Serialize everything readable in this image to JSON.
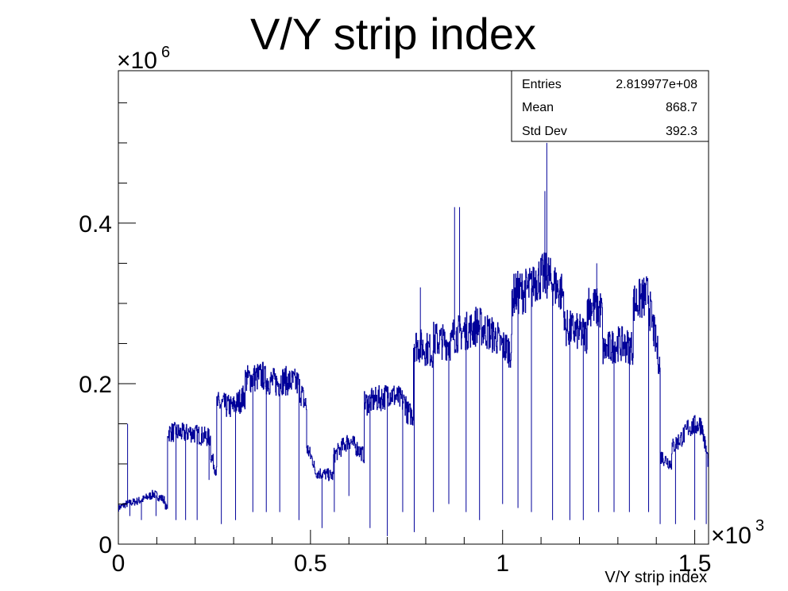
{
  "chart_data": {
    "type": "histogram",
    "title": "V/Y strip index",
    "xlabel": "V/Y strip index",
    "ylabel": "",
    "x_multiplier": "×10",
    "x_multiplier_exp": "3",
    "y_multiplier": "×10",
    "y_multiplier_exp": "6",
    "xlim": [
      0,
      1536
    ],
    "ylim": [
      0,
      590000
    ],
    "x_ticks": [
      {
        "value": 0,
        "label": "0"
      },
      {
        "value": 500,
        "label": "0.5"
      },
      {
        "value": 1000,
        "label": "1"
      },
      {
        "value": 1500,
        "label": "1.5"
      }
    ],
    "y_ticks": [
      {
        "value": 0,
        "label": "0"
      },
      {
        "value": 200000,
        "label": "0.2"
      },
      {
        "value": 400000,
        "label": "0.4"
      }
    ],
    "line_color": "#000099",
    "segments": [
      {
        "x0": 0,
        "x1": 20,
        "y0": 45000,
        "y1": 50000
      },
      {
        "x0": 20,
        "x1": 60,
        "y0": 50000,
        "y1": 55000
      },
      {
        "x0": 60,
        "x1": 90,
        "y0": 55000,
        "y1": 62000
      },
      {
        "x0": 90,
        "x1": 120,
        "y0": 63000,
        "y1": 55000
      },
      {
        "x0": 120,
        "x1": 128,
        "y0": 50000,
        "y1": 42000
      },
      {
        "x0": 128,
        "x1": 180,
        "y0": 140000,
        "y1": 138000
      },
      {
        "x0": 180,
        "x1": 240,
        "y0": 140000,
        "y1": 132000
      },
      {
        "x0": 240,
        "x1": 256,
        "y0": 112000,
        "y1": 88000
      },
      {
        "x0": 256,
        "x1": 300,
        "y0": 175000,
        "y1": 170000
      },
      {
        "x0": 300,
        "x1": 330,
        "y0": 172000,
        "y1": 185000
      },
      {
        "x0": 330,
        "x1": 380,
        "y0": 205000,
        "y1": 210000
      },
      {
        "x0": 380,
        "x1": 420,
        "y0": 205000,
        "y1": 200000
      },
      {
        "x0": 420,
        "x1": 470,
        "y0": 205000,
        "y1": 200000
      },
      {
        "x0": 470,
        "x1": 490,
        "y0": 195000,
        "y1": 170000
      },
      {
        "x0": 490,
        "x1": 510,
        "y0": 120000,
        "y1": 100000
      },
      {
        "x0": 510,
        "x1": 560,
        "y0": 90000,
        "y1": 85000
      },
      {
        "x0": 560,
        "x1": 600,
        "y0": 110000,
        "y1": 130000
      },
      {
        "x0": 600,
        "x1": 640,
        "y0": 130000,
        "y1": 110000
      },
      {
        "x0": 640,
        "x1": 700,
        "y0": 175000,
        "y1": 185000
      },
      {
        "x0": 700,
        "x1": 750,
        "y0": 190000,
        "y1": 175000
      },
      {
        "x0": 750,
        "x1": 768,
        "y0": 165000,
        "y1": 160000
      },
      {
        "x0": 768,
        "x1": 820,
        "y0": 250000,
        "y1": 240000
      },
      {
        "x0": 820,
        "x1": 870,
        "y0": 255000,
        "y1": 250000
      },
      {
        "x0": 870,
        "x1": 930,
        "y0": 260000,
        "y1": 270000
      },
      {
        "x0": 930,
        "x1": 990,
        "y0": 275000,
        "y1": 255000
      },
      {
        "x0": 990,
        "x1": 1024,
        "y0": 250000,
        "y1": 240000
      },
      {
        "x0": 1024,
        "x1": 1080,
        "y0": 310000,
        "y1": 320000
      },
      {
        "x0": 1080,
        "x1": 1120,
        "y0": 330000,
        "y1": 335000
      },
      {
        "x0": 1120,
        "x1": 1160,
        "y0": 330000,
        "y1": 310000
      },
      {
        "x0": 1160,
        "x1": 1220,
        "y0": 270000,
        "y1": 260000
      },
      {
        "x0": 1220,
        "x1": 1260,
        "y0": 300000,
        "y1": 290000
      },
      {
        "x0": 1260,
        "x1": 1300,
        "y0": 240000,
        "y1": 250000
      },
      {
        "x0": 1300,
        "x1": 1340,
        "y0": 250000,
        "y1": 245000
      },
      {
        "x0": 1340,
        "x1": 1380,
        "y0": 300000,
        "y1": 310000
      },
      {
        "x0": 1380,
        "x1": 1410,
        "y0": 300000,
        "y1": 220000
      },
      {
        "x0": 1410,
        "x1": 1440,
        "y0": 110000,
        "y1": 100000
      },
      {
        "x0": 1440,
        "x1": 1480,
        "y0": 120000,
        "y1": 140000
      },
      {
        "x0": 1480,
        "x1": 1520,
        "y0": 145000,
        "y1": 150000
      },
      {
        "x0": 1520,
        "x1": 1536,
        "y0": 140000,
        "y1": 100000
      }
    ],
    "spikes": [
      {
        "x": 24,
        "y": 150000
      },
      {
        "x": 888,
        "y": 420000
      },
      {
        "x": 875,
        "y": 420000
      },
      {
        "x": 1110,
        "y": 440000
      },
      {
        "x": 1115,
        "y": 500000
      },
      {
        "x": 786,
        "y": 320000
      },
      {
        "x": 1245,
        "y": 350000
      },
      {
        "x": 1360,
        "y": 325000
      }
    ],
    "dips": [
      {
        "x": 30,
        "y": 35000
      },
      {
        "x": 60,
        "y": 30000
      },
      {
        "x": 98,
        "y": 35000
      },
      {
        "x": 150,
        "y": 30000
      },
      {
        "x": 175,
        "y": 30000
      },
      {
        "x": 205,
        "y": 30000
      },
      {
        "x": 236,
        "y": 80000
      },
      {
        "x": 268,
        "y": 25000
      },
      {
        "x": 305,
        "y": 30000
      },
      {
        "x": 350,
        "y": 40000
      },
      {
        "x": 385,
        "y": 40000
      },
      {
        "x": 420,
        "y": 40000
      },
      {
        "x": 470,
        "y": 30000
      },
      {
        "x": 530,
        "y": 20000
      },
      {
        "x": 562,
        "y": 40000
      },
      {
        "x": 600,
        "y": 60000
      },
      {
        "x": 655,
        "y": 20000
      },
      {
        "x": 700,
        "y": 10000
      },
      {
        "x": 740,
        "y": 40000
      },
      {
        "x": 770,
        "y": 15000
      },
      {
        "x": 820,
        "y": 40000
      },
      {
        "x": 860,
        "y": 50000
      },
      {
        "x": 905,
        "y": 40000
      },
      {
        "x": 940,
        "y": 30000
      },
      {
        "x": 1000,
        "y": 50000
      },
      {
        "x": 1040,
        "y": 45000
      },
      {
        "x": 1075,
        "y": 40000
      },
      {
        "x": 1130,
        "y": 30000
      },
      {
        "x": 1175,
        "y": 30000
      },
      {
        "x": 1210,
        "y": 30000
      },
      {
        "x": 1250,
        "y": 40000
      },
      {
        "x": 1290,
        "y": 40000
      },
      {
        "x": 1330,
        "y": 40000
      },
      {
        "x": 1380,
        "y": 40000
      },
      {
        "x": 1410,
        "y": 25000
      },
      {
        "x": 1450,
        "y": 25000
      },
      {
        "x": 1500,
        "y": 30000
      },
      {
        "x": 1530,
        "y": 25000
      }
    ],
    "stats": [
      {
        "label": "Entries",
        "value": "2.819977e+08"
      },
      {
        "label": "Mean",
        "value": "868.7"
      },
      {
        "label": "Std Dev",
        "value": "392.3"
      }
    ]
  }
}
